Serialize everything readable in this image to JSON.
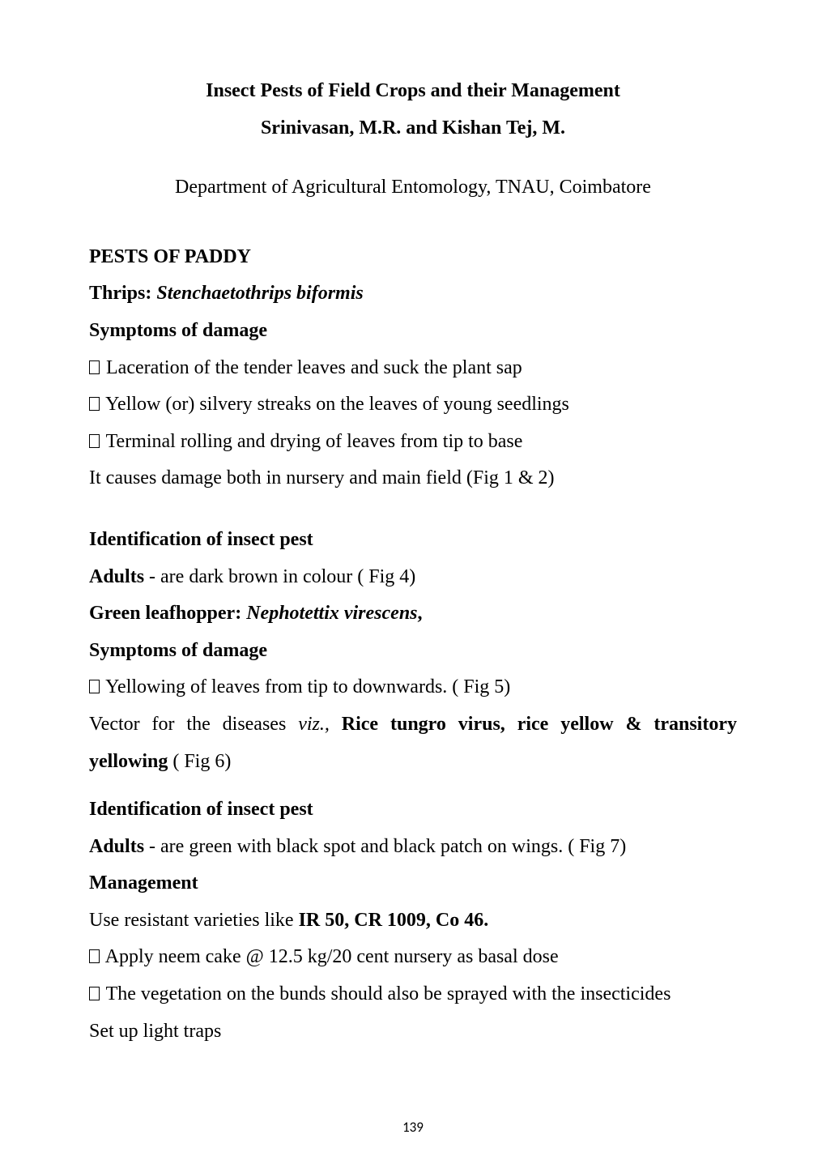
{
  "header": {
    "title": "Insect Pests of Field Crops and their Management",
    "authors": "Srinivasan, M.R. and Kishan Tej, M.",
    "department": "Department of Agricultural Entomology, TNAU, Coimbatore"
  },
  "sections": {
    "pests_heading": "PESTS OF PADDY",
    "thrips": {
      "label": "Thrips:  ",
      "species": "Stenchaetothrips biformis"
    },
    "symptoms_heading": "Symptoms of damage",
    "symptom_lines": {
      "s1": " Laceration of  the tender leaves and suck the plant sap",
      "s2": "  Yellow (or) silvery streaks on the leaves of young seedlings",
      "s3": "  Terminal rolling and drying of leaves from tip to base",
      "s4": "It causes damage both in nursery and main field (Fig 1 & 2)"
    },
    "ident_heading": "Identification of insect pest",
    "adults1": {
      "pre": " ",
      "label": "Adults",
      "rest": " - are dark brown in colour ( Fig 4)"
    },
    "green_leafhopper": {
      "label": "Green leafhopper:  ",
      "species": "Nephotettix virescens",
      "tail": ","
    },
    "symptoms_heading2": "Symptoms of damage",
    "glh_symptom": "  Yellowing of leaves from tip to downwards. ( Fig 5)",
    "vector_line": {
      "pre": "Vector for the diseases ",
      "viz": "viz.,",
      "mid": " ",
      "bold1": "Rice tungro virus, rice yellow & transitory yellowing",
      "tail": " ( Fig 6)"
    },
    "ident_heading2": "Identification of insect pest",
    "adults2": {
      "label": "Adults",
      "rest": " - are green with black spot and black patch on wings. ( Fig 7)"
    },
    "management_heading": "Management",
    "mgmt_lines": {
      "m1_pre": "Use resistant varieties like ",
      "m1_bold": "IR 50, CR 1009, Co 46.",
      "m2": "  Apply neem cake @ 12.5 kg/20 cent nursery as basal dose",
      "m3": " The vegetation on the bunds should also be sprayed with the insecticides",
      "m4": "Set up light traps"
    }
  },
  "page_number": "139"
}
